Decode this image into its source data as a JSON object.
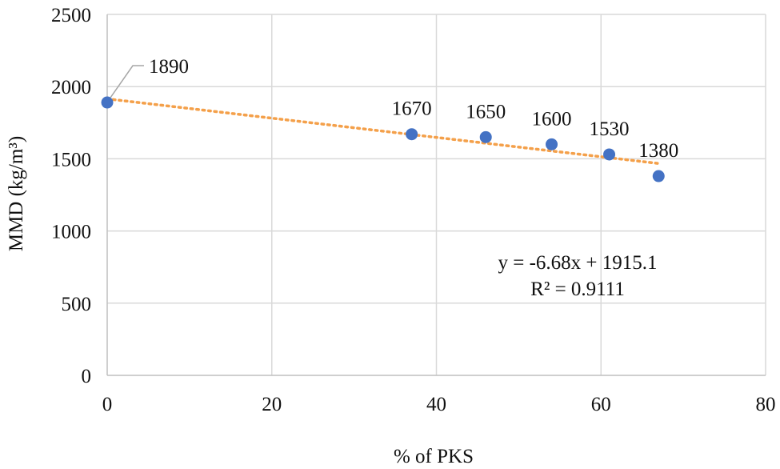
{
  "chart_data": {
    "type": "scatter",
    "title": "",
    "xlabel": "% of PKS",
    "ylabel": "MMD (kg/m³)",
    "xlim": [
      0,
      80
    ],
    "ylim": [
      0,
      2500
    ],
    "xticks": [
      0,
      20,
      40,
      60,
      80
    ],
    "yticks": [
      0,
      500,
      1000,
      1500,
      2000,
      2500
    ],
    "grid": true,
    "series": [
      {
        "name": "MMD",
        "x": [
          0,
          37,
          46,
          54,
          61,
          67
        ],
        "y": [
          1890,
          1670,
          1650,
          1600,
          1530,
          1380
        ],
        "labels": [
          "1890",
          "1670",
          "1650",
          "1600",
          "1530",
          "1380"
        ],
        "color": "#4472c4"
      }
    ],
    "trendline": {
      "type": "linear",
      "slope": -6.68,
      "intercept": 1915.1,
      "x_range": [
        0,
        67
      ],
      "color": "#f4a04a",
      "equation": "y = -6.68x + 1915.1",
      "r_squared": "R² = 0.9111"
    }
  }
}
